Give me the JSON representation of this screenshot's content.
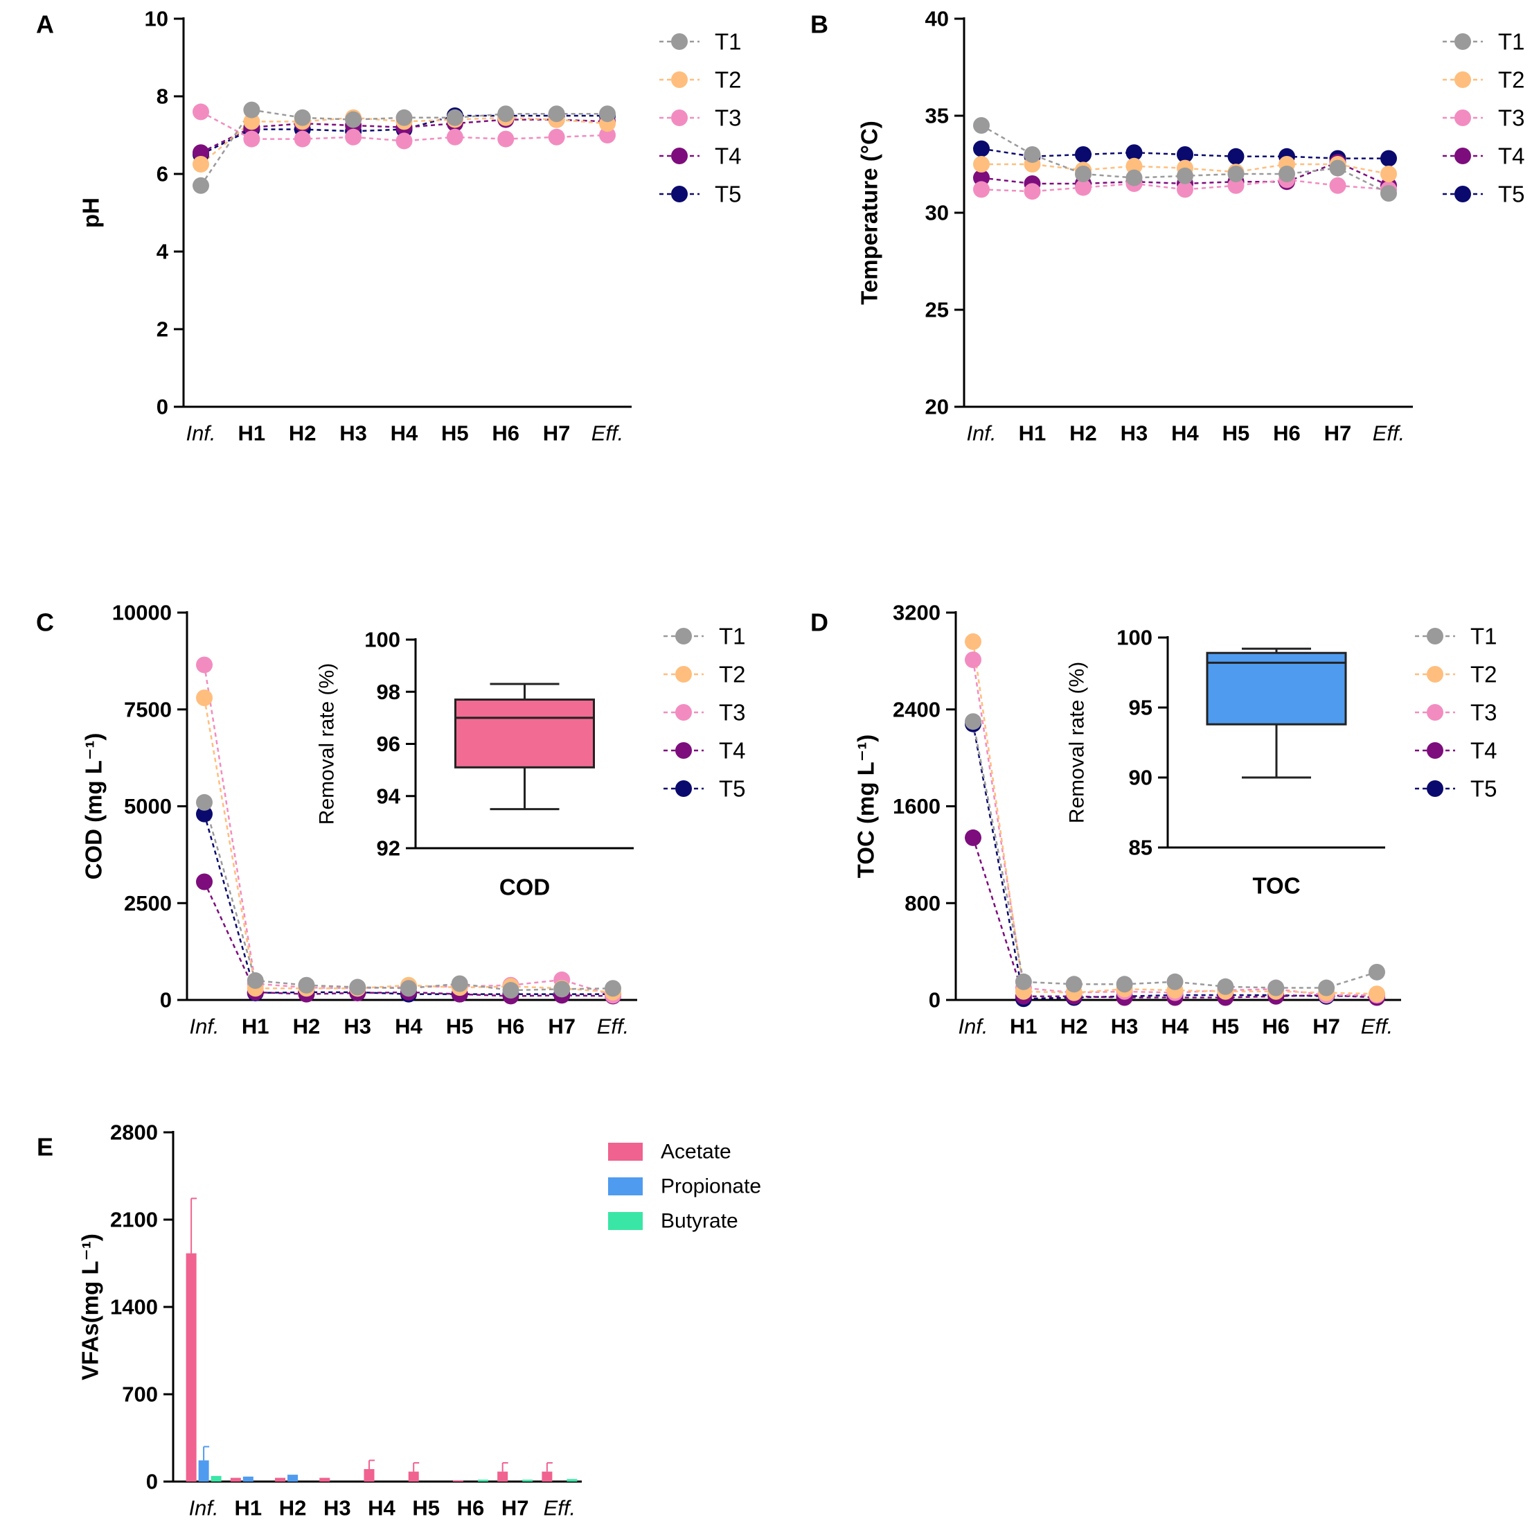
{
  "colors": {
    "T1": "#9a9a9a",
    "T2": "#ffbe7d",
    "T3": "#f28cc0",
    "T4": "#7d0d7d",
    "T5": "#0a0a6e",
    "Acetate": "#f0628f",
    "Propionate": "#4f9bef",
    "Butyrate": "#3ae6a6",
    "box_COD": "#f26b93",
    "box_TOC": "#4f9bef"
  },
  "chart_data": [
    {
      "panel": "A",
      "type": "line",
      "ylabel": "pH",
      "ylim": [
        0,
        10
      ],
      "yticks": [
        "0",
        "2",
        "4",
        "6",
        "8",
        "10"
      ],
      "categories": [
        "Inf.",
        "H1",
        "H2",
        "H3",
        "H4",
        "H5",
        "H6",
        "H7",
        "Eff."
      ],
      "italic_categories": [
        "Inf.",
        "Eff."
      ],
      "series": [
        {
          "name": "T1",
          "values": [
            5.7,
            7.65,
            7.45,
            7.4,
            7.45,
            7.45,
            7.55,
            7.55,
            7.55
          ]
        },
        {
          "name": "T2",
          "values": [
            6.25,
            7.35,
            7.35,
            7.45,
            7.35,
            7.4,
            7.45,
            7.4,
            7.3
          ]
        },
        {
          "name": "T3",
          "values": [
            7.6,
            6.9,
            6.9,
            6.95,
            6.85,
            6.95,
            6.9,
            6.95,
            7.0
          ]
        },
        {
          "name": "T4",
          "values": [
            6.55,
            7.2,
            7.3,
            7.25,
            7.2,
            7.3,
            7.4,
            7.4,
            7.35
          ]
        },
        {
          "name": "T5",
          "values": [
            6.5,
            7.15,
            7.15,
            7.1,
            7.15,
            7.5,
            7.5,
            7.5,
            7.5
          ]
        }
      ]
    },
    {
      "panel": "B",
      "type": "line",
      "ylabel": "Temperature (°C)",
      "ylim": [
        20,
        40
      ],
      "yticks": [
        "20",
        "25",
        "30",
        "35",
        "40"
      ],
      "categories": [
        "Inf.",
        "H1",
        "H2",
        "H3",
        "H4",
        "H5",
        "H6",
        "H7",
        "Eff."
      ],
      "italic_categories": [
        "Inf.",
        "Eff."
      ],
      "series": [
        {
          "name": "T1",
          "values": [
            34.5,
            33.0,
            32.0,
            31.8,
            31.9,
            32.0,
            32.0,
            32.3,
            31.0
          ]
        },
        {
          "name": "T2",
          "values": [
            32.5,
            32.5,
            32.2,
            32.4,
            32.3,
            32.1,
            32.5,
            32.5,
            32.0
          ]
        },
        {
          "name": "T3",
          "values": [
            31.2,
            31.1,
            31.3,
            31.5,
            31.2,
            31.4,
            31.7,
            31.4,
            31.2
          ]
        },
        {
          "name": "T4",
          "values": [
            31.8,
            31.5,
            31.5,
            31.6,
            31.5,
            31.6,
            31.6,
            32.6,
            31.4
          ]
        },
        {
          "name": "T5",
          "values": [
            33.3,
            32.9,
            33.0,
            33.1,
            33.0,
            32.9,
            32.9,
            32.8,
            32.8
          ]
        }
      ]
    },
    {
      "panel": "C",
      "type": "line",
      "ylabel": "COD (mg L⁻¹)",
      "ylim": [
        0,
        10000
      ],
      "yticks": [
        "0",
        "2500",
        "5000",
        "7500",
        "10000"
      ],
      "categories": [
        "Inf.",
        "H1",
        "H2",
        "H3",
        "H4",
        "H5",
        "H6",
        "H7",
        "Eff."
      ],
      "italic_categories": [
        "Inf.",
        "Eff."
      ],
      "series": [
        {
          "name": "T1",
          "values": [
            5100,
            500,
            380,
            330,
            300,
            420,
            250,
            280,
            300
          ]
        },
        {
          "name": "T2",
          "values": [
            7800,
            300,
            300,
            300,
            380,
            320,
            350,
            300,
            200
          ]
        },
        {
          "name": "T3",
          "values": [
            8650,
            420,
            320,
            300,
            330,
            350,
            380,
            520,
            120
          ]
        },
        {
          "name": "T4",
          "values": [
            3050,
            200,
            150,
            180,
            200,
            150,
            100,
            120,
            100
          ]
        },
        {
          "name": "T5",
          "values": [
            4800,
            180,
            200,
            200,
            150,
            150,
            150,
            150,
            150
          ]
        }
      ],
      "inset": {
        "type": "box",
        "category": "COD",
        "ylabel": "Removal rate (%)",
        "ylim": [
          92,
          100
        ],
        "yticks": [
          "92",
          "94",
          "96",
          "98",
          "100"
        ],
        "min": 93.5,
        "q1": 95.1,
        "median": 97.0,
        "q3": 97.7,
        "max": 98.3
      }
    },
    {
      "panel": "D",
      "type": "line",
      "ylabel": "TOC (mg L⁻¹)",
      "ylim": [
        0,
        3200
      ],
      "yticks": [
        "0",
        "800",
        "1600",
        "2400",
        "3200"
      ],
      "categories": [
        "Inf.",
        "H1",
        "H2",
        "H3",
        "H4",
        "H5",
        "H6",
        "H7",
        "Eff."
      ],
      "italic_categories": [
        "Inf.",
        "Eff."
      ],
      "series": [
        {
          "name": "T1",
          "values": [
            2300,
            150,
            130,
            130,
            150,
            110,
            100,
            100,
            230
          ]
        },
        {
          "name": "T2",
          "values": [
            2960,
            70,
            60,
            90,
            80,
            70,
            70,
            60,
            50
          ]
        },
        {
          "name": "T3",
          "values": [
            2810,
            100,
            60,
            70,
            60,
            80,
            90,
            40,
            40
          ]
        },
        {
          "name": "T4",
          "values": [
            1340,
            30,
            30,
            20,
            20,
            20,
            30,
            40,
            20
          ]
        },
        {
          "name": "T5",
          "values": [
            2280,
            10,
            20,
            30,
            40,
            40,
            40,
            30,
            40
          ]
        }
      ],
      "inset": {
        "type": "box",
        "category": "TOC",
        "ylabel": "Removal rate (%)",
        "ylim": [
          85,
          100
        ],
        "yticks": [
          "85",
          "90",
          "95",
          "100"
        ],
        "min": 90.0,
        "q1": 93.8,
        "median": 98.2,
        "q3": 98.9,
        "max": 99.2
      }
    },
    {
      "panel": "E",
      "type": "bar",
      "ylabel": "VFAs(mg L⁻¹)",
      "ylim": [
        0,
        2800
      ],
      "yticks": [
        "0",
        "700",
        "1400",
        "2100",
        "2800"
      ],
      "categories": [
        "Inf.",
        "H1",
        "H2",
        "H3",
        "H4",
        "H5",
        "H6",
        "H7",
        "Eff."
      ],
      "italic_categories": [
        "Inf.",
        "Eff."
      ],
      "series": [
        {
          "name": "Acetate",
          "values": [
            1830,
            30,
            30,
            30,
            100,
            80,
            10,
            80,
            80
          ],
          "errors": [
            440,
            0,
            0,
            0,
            70,
            70,
            0,
            70,
            70
          ]
        },
        {
          "name": "Propionate",
          "values": [
            170,
            40,
            55,
            0,
            0,
            0,
            0,
            0,
            0
          ],
          "errors": [
            110,
            0,
            0,
            0,
            0,
            0,
            0,
            0,
            0
          ]
        },
        {
          "name": "Butyrate",
          "values": [
            45,
            0,
            0,
            0,
            0,
            0,
            15,
            15,
            20
          ],
          "errors": [
            0,
            0,
            0,
            0,
            0,
            0,
            0,
            0,
            0
          ]
        }
      ]
    }
  ]
}
